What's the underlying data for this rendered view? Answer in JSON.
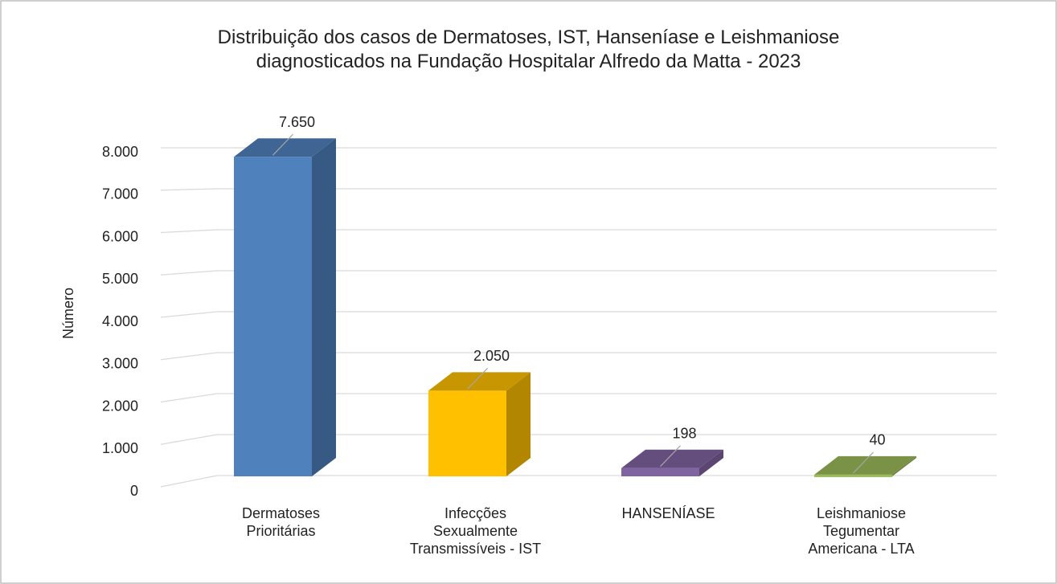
{
  "chart_data": {
    "type": "bar3d",
    "title": "Distribuição dos casos de  Dermatoses, IST, Hanseníase e Leishmaniose\ndiagnosticados na Fundação Hospitalar Alfredo da Matta - 2023",
    "y_label": "Número",
    "categories": [
      "Dermatoses\nPrioritárias",
      "Infecções\nSexualmente\nTransmissíveis - IST",
      "HANSENÍASE",
      "Leishmaniose\nTegumentar\nAmericana - LTA"
    ],
    "values": [
      7650,
      2050,
      198,
      40
    ],
    "value_labels": [
      "7.650",
      "2.050",
      "198",
      "40"
    ],
    "colors": [
      "#4f81bd",
      "#ffc000",
      "#8064a2",
      "#9bbb59"
    ],
    "ylim": [
      0,
      8000
    ],
    "yticks": [
      0,
      {
        "value": 1000,
        "label": "1.000"
      },
      {
        "value": 2000,
        "label": "2.000"
      },
      {
        "value": 3000,
        "label": "3.000"
      },
      {
        "value": 4000,
        "label": "4.000"
      },
      {
        "value": 5000,
        "label": "5.000"
      },
      {
        "value": 6000,
        "label": "6.000"
      },
      {
        "value": 7000,
        "label": "7.000"
      },
      {
        "value": 8000,
        "label": "8.000"
      }
    ],
    "grid": true
  }
}
